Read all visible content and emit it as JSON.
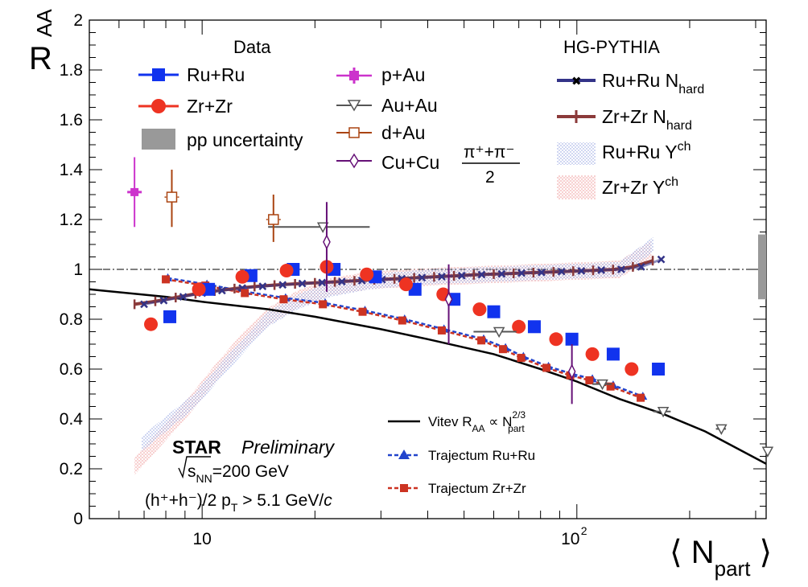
{
  "chart_data": {
    "type": "scatter",
    "x_scale": "log",
    "xlim": [
      5,
      320
    ],
    "ylim": [
      0,
      2
    ],
    "xlabel": {
      "pre": "⟨ N",
      "sub": "part",
      "post": " ⟩"
    },
    "ylabel": {
      "main": "R",
      "sub": "AA"
    },
    "y_ticks": [
      "0",
      "0.2",
      "0.4",
      "0.6",
      "0.8",
      "1",
      "1.2",
      "1.4",
      "1.6",
      "1.8",
      "2"
    ],
    "x_tick_labels": {
      "ten": "10",
      "hundred_base": "10",
      "hundred_exp": "2"
    },
    "reference_line": 1,
    "legend_data": {
      "header": "Data",
      "ru": "Ru+Ru",
      "zr": "Zr+Zr",
      "pp": "pp uncertainty",
      "pau": "p+Au",
      "auau": "Au+Au",
      "dau": "d+Au",
      "cucu": "Cu+Cu",
      "cucu_num": "π⁺+π⁻",
      "cucu_den": "2"
    },
    "legend_model": {
      "header": "HG-PYTHIA",
      "ru_nhard": {
        "pre": "Ru+Ru N",
        "sub": "hard"
      },
      "zr_nhard": {
        "pre": "Zr+Zr N",
        "sub": "hard"
      },
      "ru_ych": {
        "pre": "Ru+Ru Y",
        "sup": "ch"
      },
      "zr_ych": {
        "pre": "Zr+Zr Y",
        "sup": "ch"
      }
    },
    "legend_theory": {
      "vitev": {
        "a": "Vitev R",
        "a_sub": "AA",
        "b": " ∝ N",
        "b_sup": "2/3",
        "b_sub": "part"
      },
      "traj_ru": "Trajectum Ru+Ru",
      "traj_zr": "Trajectum Zr+Zr"
    },
    "star_label": {
      "star": "STAR",
      "preliminary": "Preliminary",
      "energy_s": "s",
      "energy_sub": "NN",
      "energy_rest": "=200 GeV",
      "hadrons": "(h⁺+h⁻)/2  p",
      "pt_sub": "T",
      "pt_rest": " > 5.1 GeV/",
      "pt_c": "c"
    },
    "colors": {
      "ru": "#1133ee",
      "zr": "#ee3322",
      "pp_box": "#999999",
      "pau": "#cc33cc",
      "auau": "#555555",
      "dau": "#aa4411",
      "cucu": "#661177",
      "nhard_ru": "#333388",
      "nhard_zr": "#8b3a3a",
      "ych_ru": "#8899dd",
      "ych_zr": "#ee9999",
      "traj_ru": "#2244cc",
      "traj_zr": "#cc3322"
    },
    "pp_uncertainty": [
      0.88,
      1.14
    ],
    "series": [
      {
        "name": "Ru+Ru",
        "marker": "square",
        "x": [
          8.2,
          10.4,
          13.5,
          17.5,
          22.5,
          29,
          37,
          47,
          60,
          77,
          97,
          125,
          165
        ],
        "y": [
          0.81,
          0.92,
          0.975,
          1.0,
          1.0,
          0.97,
          0.92,
          0.88,
          0.83,
          0.77,
          0.72,
          0.66,
          0.6
        ]
      },
      {
        "name": "Zr+Zr",
        "marker": "circle",
        "x": [
          7.3,
          9.8,
          12.8,
          16.8,
          21.5,
          27.5,
          35,
          44,
          55,
          70,
          88,
          110,
          140
        ],
        "y": [
          0.78,
          0.92,
          0.97,
          0.995,
          1.01,
          0.98,
          0.94,
          0.9,
          0.84,
          0.77,
          0.72,
          0.66,
          0.6
        ]
      },
      {
        "name": "p+Au",
        "marker": "cross",
        "x": [
          6.6
        ],
        "y": [
          1.31
        ],
        "ylo": [
          1.17
        ],
        "yhi": [
          1.45
        ]
      },
      {
        "name": "Au+Au",
        "marker": "triangle-down-open",
        "x": [
          21,
          62,
          117,
          170,
          243,
          323
        ],
        "y": [
          1.17,
          0.75,
          0.54,
          0.43,
          0.36,
          0.27
        ],
        "xlo": [
          15,
          53,
          110,
          160,
          235,
          318
        ],
        "xhi": [
          28,
          69,
          124,
          178,
          250,
          328
        ]
      },
      {
        "name": "d+Au",
        "marker": "square-open",
        "x": [
          8.3,
          15.5
        ],
        "y": [
          1.29,
          1.2
        ],
        "ylo": [
          1.17,
          1.11
        ],
        "yhi": [
          1.4,
          1.3
        ]
      },
      {
        "name": "Cu+Cu",
        "marker": "diamond-open",
        "x": [
          21.5,
          45.5,
          97
        ],
        "y": [
          1.11,
          0.88,
          0.59
        ],
        "ylo": [
          0.91,
          0.7,
          0.46
        ],
        "yhi": [
          1.27,
          1.02,
          0.7
        ]
      },
      {
        "name": "Ru+Ru N_hard",
        "marker": "x",
        "x": [
          7,
          7.9,
          8.9,
          10,
          11.3,
          12.8,
          14.5,
          16.4,
          18.5,
          20.9,
          23.6,
          26.7,
          30.2,
          34.1,
          38.6,
          43.6,
          49.3,
          55.7,
          63,
          71.2,
          80.5,
          91,
          102.8,
          116.2,
          131.4,
          148.5,
          167.9
        ],
        "y": [
          0.86,
          0.875,
          0.89,
          0.905,
          0.915,
          0.925,
          0.932,
          0.938,
          0.943,
          0.947,
          0.951,
          0.955,
          0.959,
          0.963,
          0.967,
          0.971,
          0.975,
          0.979,
          0.982,
          0.985,
          0.988,
          0.991,
          0.994,
          0.997,
          1.0,
          1.01,
          1.04
        ]
      },
      {
        "name": "Zr+Zr N_hard",
        "marker": "plus",
        "x": [
          6.6,
          7.5,
          8.5,
          9.6,
          10.8,
          12.2,
          13.8,
          15.6,
          17.7,
          20,
          22.6,
          25.5,
          28.8,
          32.6,
          36.8,
          41.6,
          47,
          53.1,
          60,
          67.8,
          76.6,
          86.6,
          97.8,
          110.5,
          124.9,
          141.1,
          159.4
        ],
        "y": [
          0.86,
          0.872,
          0.887,
          0.902,
          0.913,
          0.923,
          0.931,
          0.937,
          0.942,
          0.946,
          0.95,
          0.954,
          0.958,
          0.962,
          0.966,
          0.97,
          0.974,
          0.978,
          0.981,
          0.984,
          0.987,
          0.99,
          0.993,
          0.996,
          0.999,
          1.01,
          1.035
        ]
      },
      {
        "name": "Trajectum Ru+Ru",
        "marker": "triangle",
        "x": [
          8.1,
          10.3,
          13.1,
          16.7,
          21.3,
          27.2,
          34.7,
          44.2,
          56.4,
          64.5,
          72,
          84,
          97.5,
          110,
          125,
          150
        ],
        "y": [
          0.965,
          0.94,
          0.91,
          0.885,
          0.865,
          0.835,
          0.8,
          0.76,
          0.72,
          0.685,
          0.65,
          0.61,
          0.58,
          0.56,
          0.535,
          0.49
        ]
      },
      {
        "name": "Trajectum Zr+Zr",
        "marker": "square-small",
        "x": [
          8,
          10.2,
          13,
          16.5,
          21,
          26.8,
          34.2,
          43.6,
          55.6,
          63.5,
          71,
          83,
          96,
          108,
          123,
          148
        ],
        "y": [
          0.96,
          0.935,
          0.905,
          0.88,
          0.86,
          0.83,
          0.795,
          0.755,
          0.715,
          0.68,
          0.645,
          0.605,
          0.575,
          0.555,
          0.53,
          0.485
        ]
      },
      {
        "name": "Vitev R_AA ∝ N_part^2/3",
        "marker": "none",
        "x": [
          5,
          8,
          10,
          15,
          20,
          30,
          40,
          60,
          80,
          100,
          130,
          170,
          220,
          320
        ],
        "y": [
          0.92,
          0.89,
          0.87,
          0.84,
          0.81,
          0.76,
          0.72,
          0.66,
          0.6,
          0.55,
          0.48,
          0.42,
          0.35,
          0.22
        ]
      },
      {
        "name": "Ru+Ru Y^ch",
        "marker": "band",
        "x": [
          6.9,
          8,
          9.5,
          11,
          13,
          15,
          18,
          22,
          28,
          40,
          60,
          90,
          130,
          160
        ],
        "y": [
          0.3,
          0.38,
          0.47,
          0.58,
          0.7,
          0.8,
          0.87,
          0.92,
          0.95,
          0.97,
          0.98,
          0.99,
          1.0,
          1.1
        ],
        "band": 0.03
      },
      {
        "name": "Zr+Zr Y^ch",
        "marker": "band",
        "x": [
          6.6,
          7.8,
          9.2,
          10.8,
          12.8,
          15,
          18,
          22,
          28,
          40,
          60,
          90,
          130,
          158
        ],
        "y": [
          0.21,
          0.33,
          0.45,
          0.58,
          0.71,
          0.81,
          0.88,
          0.93,
          0.955,
          0.97,
          0.98,
          0.99,
          1.0,
          1.08
        ],
        "band": 0.035
      }
    ]
  }
}
